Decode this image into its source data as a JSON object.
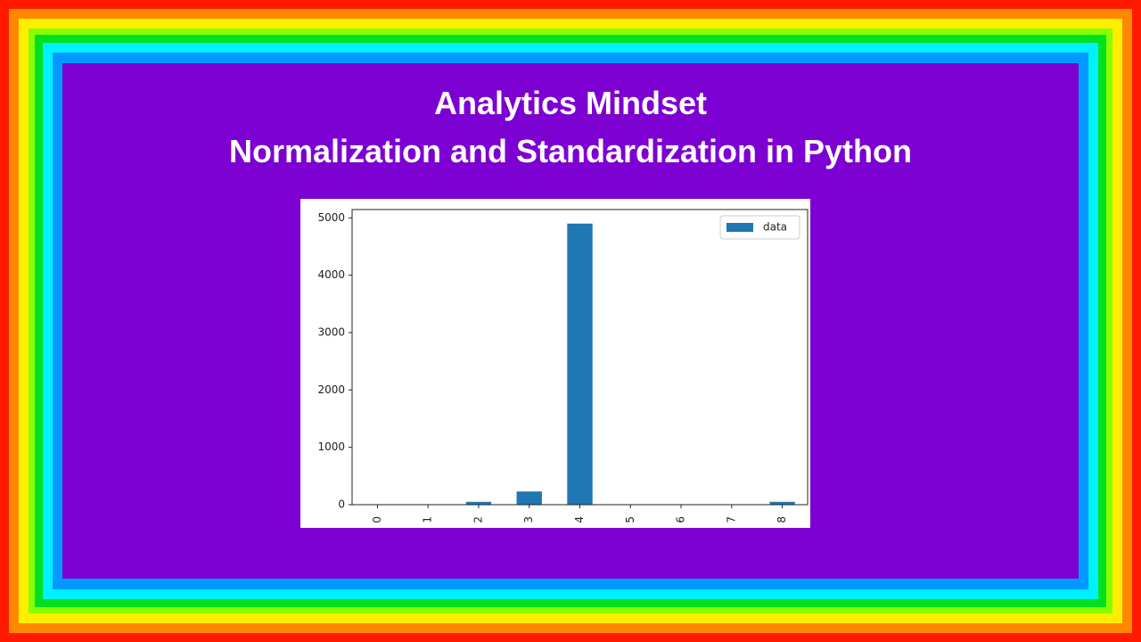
{
  "header": {
    "line1": "Analytics Mindset",
    "line2": "Normalization and Standardization in Python"
  },
  "chart_data": {
    "type": "bar",
    "categories": [
      "0",
      "1",
      "2",
      "3",
      "4",
      "5",
      "6",
      "7",
      "8"
    ],
    "series": [
      {
        "name": "data",
        "color": "#1f77b4",
        "values": [
          2,
          2,
          50,
          230,
          4900,
          1,
          1,
          1,
          50
        ]
      }
    ],
    "ylim": [
      0,
      5145
    ],
    "yticks": [
      0,
      1000,
      2000,
      3000,
      4000,
      5000
    ],
    "legend": "upper right"
  }
}
